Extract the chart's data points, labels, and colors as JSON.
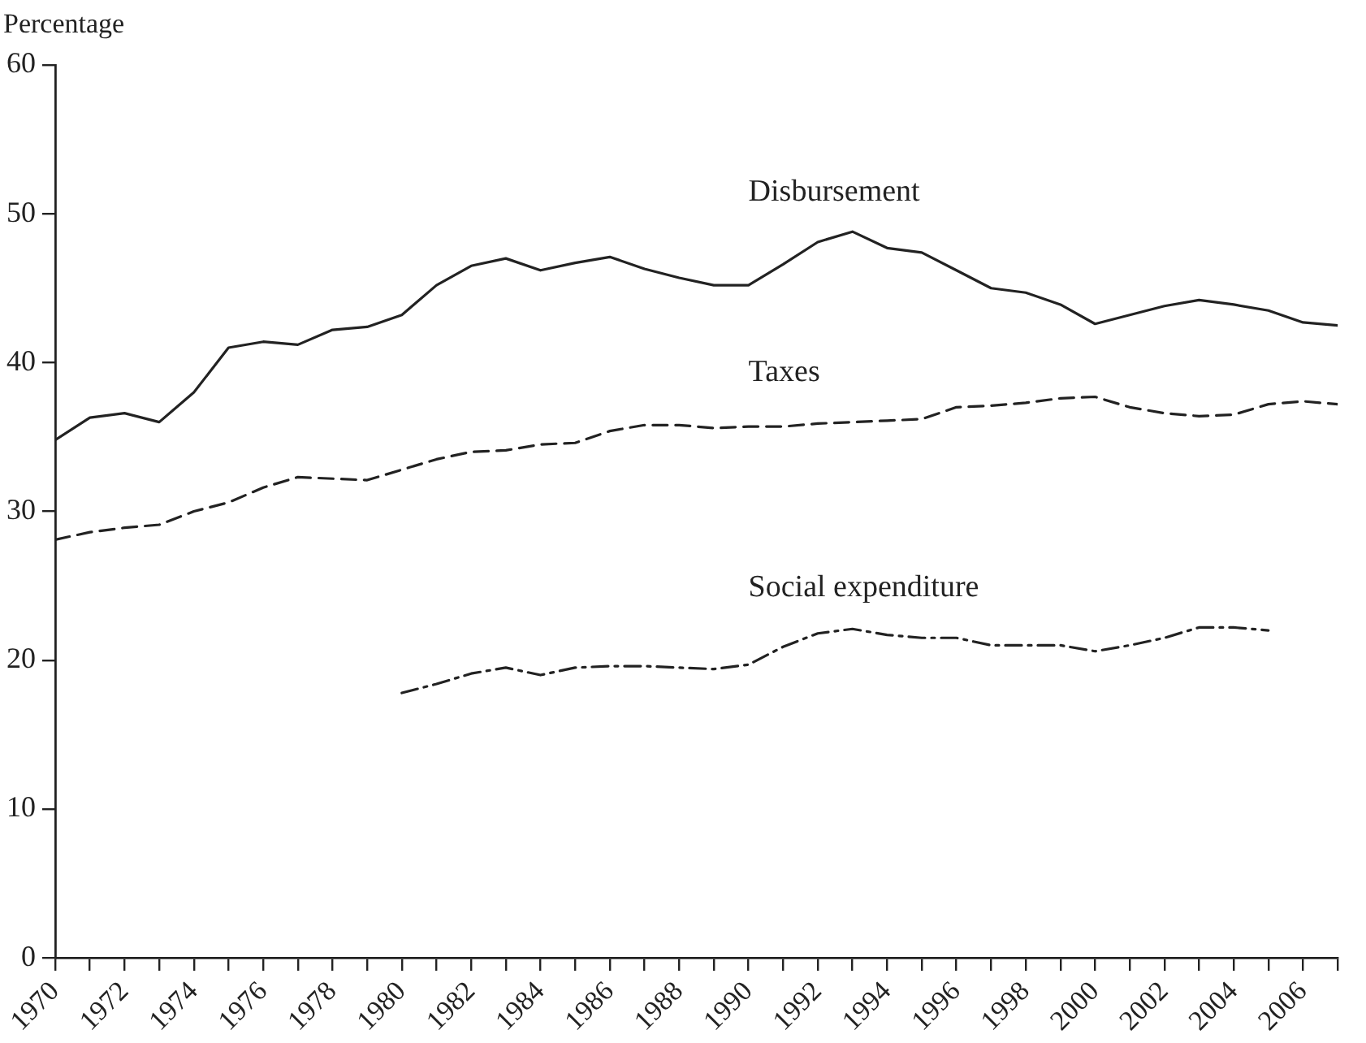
{
  "chart_data": {
    "type": "line",
    "ylabel": "Percentage",
    "x": [
      1970,
      1971,
      1972,
      1973,
      1974,
      1975,
      1976,
      1977,
      1978,
      1979,
      1980,
      1981,
      1982,
      1983,
      1984,
      1985,
      1986,
      1987,
      1988,
      1989,
      1990,
      1991,
      1992,
      1993,
      1994,
      1995,
      1996,
      1997,
      1998,
      1999,
      2000,
      2001,
      2002,
      2003,
      2004,
      2005,
      2006,
      2007
    ],
    "series": [
      {
        "name": "Disbursement",
        "color": "#222222",
        "line_style": "solid",
        "values": [
          34.8,
          36.3,
          36.6,
          36.0,
          38.0,
          41.0,
          41.4,
          41.2,
          42.2,
          42.4,
          43.2,
          45.2,
          46.5,
          47.0,
          46.2,
          46.7,
          47.1,
          46.3,
          45.7,
          45.2,
          45.2,
          46.6,
          48.1,
          48.8,
          47.7,
          47.4,
          46.2,
          45.0,
          44.7,
          43.9,
          42.6,
          43.2,
          43.8,
          44.2,
          43.9,
          43.5,
          42.7,
          42.5
        ]
      },
      {
        "name": "Taxes",
        "color": "#222222",
        "line_style": "dashed",
        "values": [
          28.1,
          28.6,
          28.9,
          29.1,
          30.0,
          30.6,
          31.6,
          32.3,
          32.2,
          32.1,
          32.8,
          33.5,
          34.0,
          34.1,
          34.5,
          34.6,
          35.4,
          35.8,
          35.8,
          35.6,
          35.7,
          35.7,
          35.9,
          36.0,
          36.1,
          36.2,
          37.0,
          37.1,
          37.3,
          37.6,
          37.7,
          37.0,
          36.6,
          36.4,
          36.5,
          37.2,
          37.4,
          37.2
        ]
      },
      {
        "name": "Social expenditure",
        "color": "#222222",
        "line_style": "dashdot",
        "values": [
          null,
          null,
          null,
          null,
          null,
          null,
          null,
          null,
          null,
          null,
          17.8,
          18.4,
          19.1,
          19.5,
          19.0,
          19.5,
          19.6,
          19.6,
          19.5,
          19.4,
          19.7,
          20.9,
          21.8,
          22.1,
          21.7,
          21.5,
          21.5,
          21.0,
          21.0,
          21.0,
          20.6,
          21.0,
          21.5,
          22.2,
          22.2,
          22.0,
          null,
          null
        ]
      }
    ],
    "xlim": [
      1970,
      2007
    ],
    "xticks": [
      1970,
      {
        "value": 1971,
        "label": null
      },
      1972,
      {
        "value": 1973,
        "label": null
      },
      1974,
      {
        "value": 1975,
        "label": null
      },
      1976,
      {
        "value": 1977,
        "label": null
      },
      1978,
      {
        "value": 1979,
        "label": null
      },
      1980,
      {
        "value": 1981,
        "label": null
      },
      1982,
      {
        "value": 1983,
        "label": null
      },
      1984,
      {
        "value": 1985,
        "label": null
      },
      1986,
      {
        "value": 1987,
        "label": null
      },
      1988,
      {
        "value": 1989,
        "label": null
      },
      1990,
      {
        "value": 1991,
        "label": null
      },
      1992,
      {
        "value": 1993,
        "label": null
      },
      1994,
      {
        "value": 1995,
        "label": null
      },
      1996,
      {
        "value": 1997,
        "label": null
      },
      1998,
      {
        "value": 1999,
        "label": null
      },
      2000,
      {
        "value": 2001,
        "label": null
      },
      2002,
      {
        "value": 2003,
        "label": null
      },
      2004,
      {
        "value": 2005,
        "label": null
      },
      2006,
      {
        "value": 2007,
        "label": null
      }
    ],
    "ylim": [
      0,
      60
    ],
    "yticks": [
      0,
      10,
      20,
      30,
      40,
      50,
      60
    ],
    "grid": false,
    "legend": false,
    "marker": "none"
  }
}
